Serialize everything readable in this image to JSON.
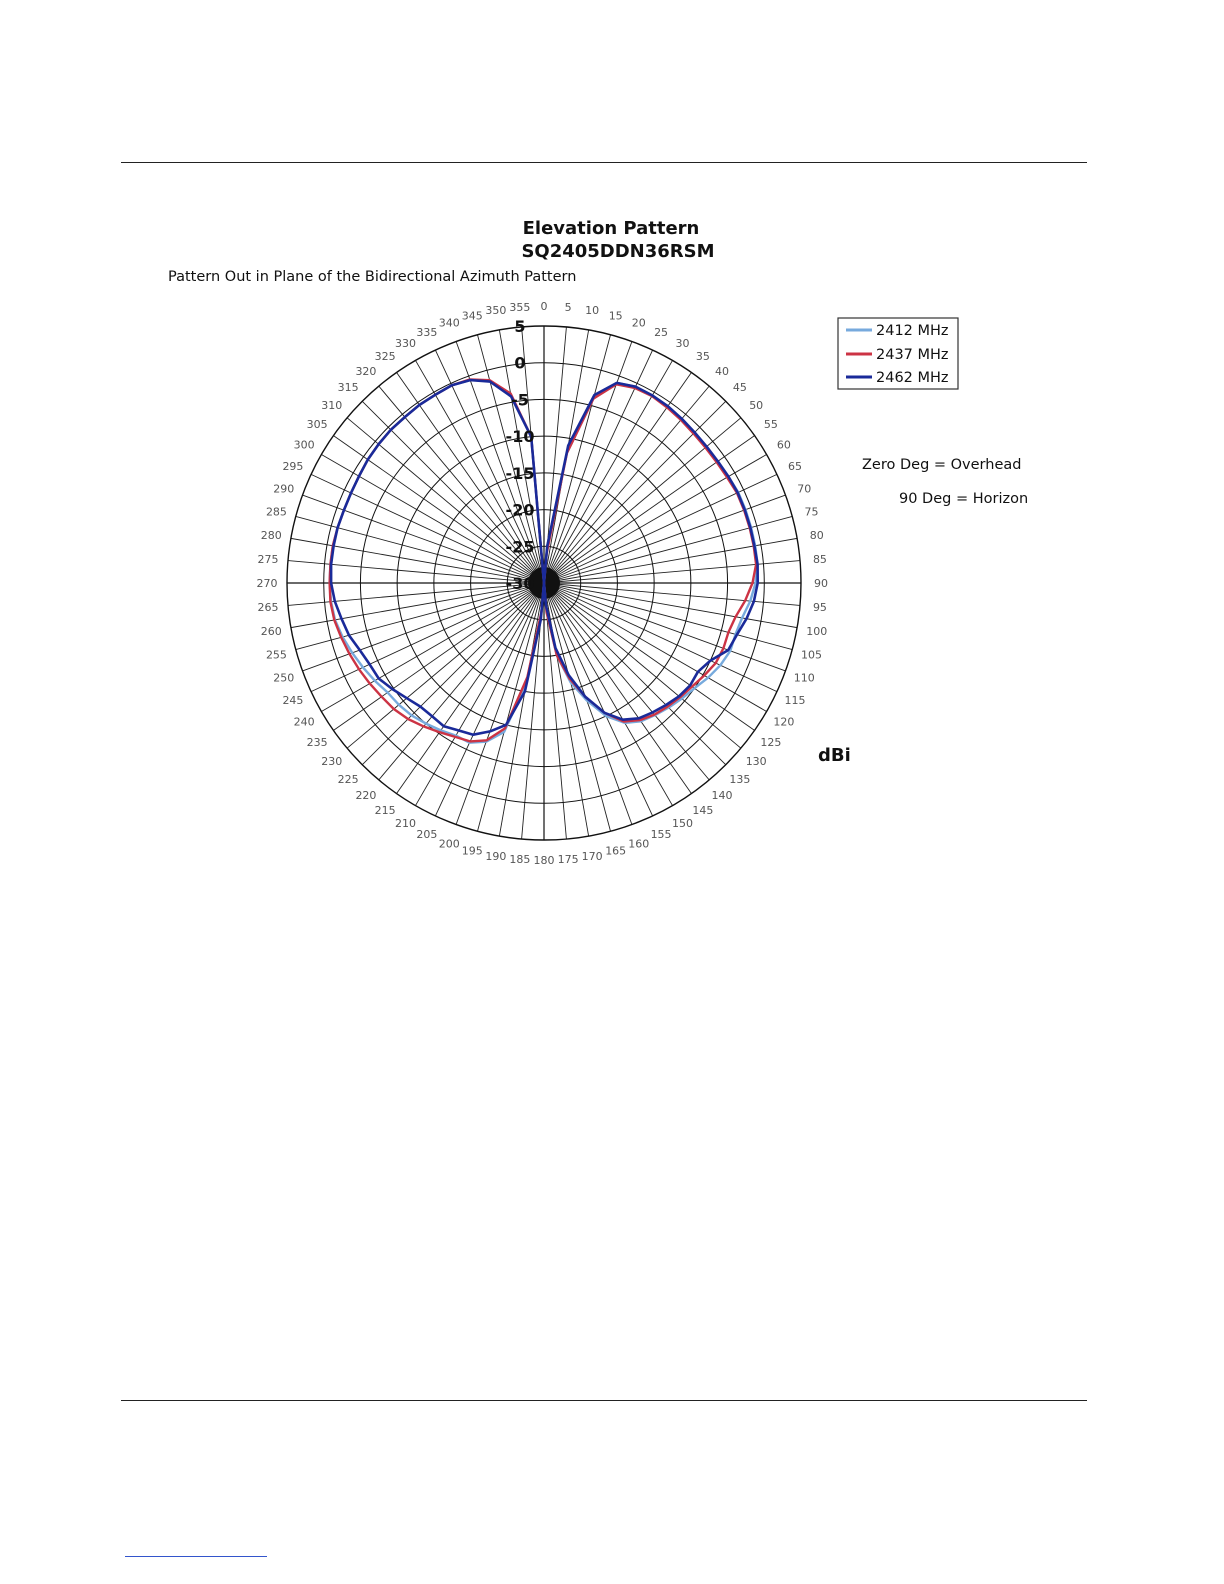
{
  "chart_data": {
    "type": "polar-line",
    "title": "Elevation Pattern",
    "subtitle": "SQ2405DDN36RSM",
    "caption": "Pattern Out in Plane of the Bidirectional Azimuth Pattern",
    "unit_label": "dBi",
    "notes": [
      "Zero Deg = Overhead",
      "90 Deg = Horizon"
    ],
    "angle_labels": [
      "0",
      "5",
      "10",
      "15",
      "20",
      "25",
      "30",
      "35",
      "40",
      "45",
      "50",
      "55",
      "60",
      "65",
      "70",
      "75",
      "80",
      "85",
      "90",
      "95",
      "100",
      "105",
      "110",
      "115",
      "120",
      "125",
      "130",
      "135",
      "140",
      "145",
      "150",
      "155",
      "160",
      "165",
      "170",
      "175",
      "180",
      "185",
      "190",
      "195",
      "200",
      "205",
      "210",
      "215",
      "220",
      "225",
      "230",
      "235",
      "240",
      "245",
      "250",
      "255",
      "260",
      "265",
      "270",
      "275",
      "280",
      "285",
      "290",
      "295",
      "300",
      "305",
      "310",
      "315",
      "320",
      "325",
      "330",
      "335",
      "340",
      "345",
      "350",
      "355"
    ],
    "radial_axis": {
      "range": [
        -30,
        5
      ],
      "tick_labels": [
        "5",
        "0",
        "-5",
        "-10",
        "-15",
        "-20",
        "-25",
        "-30"
      ],
      "tick_values": [
        5,
        0,
        -5,
        -10,
        -15,
        -20,
        -25,
        -30
      ]
    },
    "angle_direction": "clockwise",
    "zero_at": "top",
    "legend_position": "top-right",
    "series": [
      {
        "name": "2412 MHz",
        "color": "#77aadd",
        "points": [
          [
            0,
            -30
          ],
          [
            5,
            -25
          ],
          [
            10,
            -12
          ],
          [
            15,
            -4
          ],
          [
            20,
            -1
          ],
          [
            25,
            -0.5
          ],
          [
            30,
            -0.5
          ],
          [
            35,
            -0.6
          ],
          [
            40,
            -0.8
          ],
          [
            45,
            -1
          ],
          [
            50,
            -1.2
          ],
          [
            55,
            -1.2
          ],
          [
            60,
            -1
          ],
          [
            65,
            -0.8
          ],
          [
            70,
            -0.8
          ],
          [
            75,
            -0.8
          ],
          [
            80,
            -0.8
          ],
          [
            85,
            -0.8
          ],
          [
            90,
            -1.2
          ],
          [
            95,
            -1.8
          ],
          [
            100,
            -2.6
          ],
          [
            105,
            -3
          ],
          [
            110,
            -3
          ],
          [
            115,
            -3.5
          ],
          [
            120,
            -4.2
          ],
          [
            125,
            -5
          ],
          [
            130,
            -5.5
          ],
          [
            135,
            -6
          ],
          [
            140,
            -6.5
          ],
          [
            145,
            -7
          ],
          [
            150,
            -8
          ],
          [
            155,
            -10
          ],
          [
            160,
            -13
          ],
          [
            165,
            -16
          ],
          [
            170,
            -20
          ],
          [
            175,
            -26
          ],
          [
            180,
            -30
          ],
          [
            185,
            -26
          ],
          [
            190,
            -16
          ],
          [
            195,
            -9
          ],
          [
            200,
            -7
          ],
          [
            205,
            -6
          ],
          [
            210,
            -6
          ],
          [
            215,
            -5.5
          ],
          [
            220,
            -5
          ],
          [
            225,
            -4.5
          ],
          [
            230,
            -4.2
          ],
          [
            235,
            -4
          ],
          [
            240,
            -3.4
          ],
          [
            245,
            -2.8
          ],
          [
            250,
            -2.2
          ],
          [
            255,
            -1.6
          ],
          [
            260,
            -1.1
          ],
          [
            265,
            -0.9
          ],
          [
            270,
            -0.8
          ],
          [
            275,
            -0.8
          ],
          [
            280,
            -0.8
          ],
          [
            285,
            -0.9
          ],
          [
            290,
            -1
          ],
          [
            295,
            -1
          ],
          [
            300,
            -0.9
          ],
          [
            305,
            -0.7
          ],
          [
            310,
            -0.6
          ],
          [
            315,
            -0.5
          ],
          [
            320,
            -0.5
          ],
          [
            325,
            -0.4
          ],
          [
            330,
            -0.4
          ],
          [
            335,
            -0.3
          ],
          [
            340,
            -0.6
          ],
          [
            345,
            -1.5
          ],
          [
            350,
            -4
          ],
          [
            355,
            -10
          ]
        ]
      },
      {
        "name": "2437 MHz",
        "color": "#cc3344",
        "points": [
          [
            0,
            -30
          ],
          [
            5,
            -26
          ],
          [
            10,
            -12
          ],
          [
            15,
            -4
          ],
          [
            20,
            -1.2
          ],
          [
            25,
            -0.7
          ],
          [
            30,
            -0.6
          ],
          [
            35,
            -0.8
          ],
          [
            40,
            -1
          ],
          [
            45,
            -1.2
          ],
          [
            50,
            -1.3
          ],
          [
            55,
            -1.3
          ],
          [
            60,
            -1.2
          ],
          [
            65,
            -1
          ],
          [
            70,
            -1
          ],
          [
            75,
            -1
          ],
          [
            80,
            -1
          ],
          [
            85,
            -1
          ],
          [
            90,
            -1.6
          ],
          [
            95,
            -2.5
          ],
          [
            100,
            -3.5
          ],
          [
            105,
            -4
          ],
          [
            110,
            -4
          ],
          [
            115,
            -4.2
          ],
          [
            120,
            -4.8
          ],
          [
            125,
            -5.4
          ],
          [
            130,
            -5.8
          ],
          [
            135,
            -6.2
          ],
          [
            140,
            -6.6
          ],
          [
            145,
            -7.2
          ],
          [
            150,
            -8.2
          ],
          [
            155,
            -10.5
          ],
          [
            160,
            -13.5
          ],
          [
            165,
            -16.5
          ],
          [
            170,
            -20
          ],
          [
            175,
            -26
          ],
          [
            180,
            -30
          ],
          [
            185,
            -26
          ],
          [
            190,
            -17
          ],
          [
            195,
            -9.5
          ],
          [
            200,
            -7.2
          ],
          [
            205,
            -6.2
          ],
          [
            210,
            -5.8
          ],
          [
            215,
            -5.2
          ],
          [
            220,
            -4.5
          ],
          [
            225,
            -3.8
          ],
          [
            230,
            -3.3
          ],
          [
            235,
            -3
          ],
          [
            240,
            -2.6
          ],
          [
            245,
            -2.2
          ],
          [
            250,
            -1.8
          ],
          [
            255,
            -1.4
          ],
          [
            260,
            -1
          ],
          [
            265,
            -0.8
          ],
          [
            270,
            -0.8
          ],
          [
            275,
            -0.8
          ],
          [
            280,
            -0.8
          ],
          [
            285,
            -0.9
          ],
          [
            290,
            -1
          ],
          [
            295,
            -1
          ],
          [
            300,
            -0.9
          ],
          [
            305,
            -0.7
          ],
          [
            310,
            -0.6
          ],
          [
            315,
            -0.5
          ],
          [
            320,
            -0.5
          ],
          [
            325,
            -0.4
          ],
          [
            330,
            -0.4
          ],
          [
            335,
            -0.3
          ],
          [
            340,
            -0.5
          ],
          [
            345,
            -1.4
          ],
          [
            350,
            -3.8
          ],
          [
            355,
            -10
          ]
        ]
      },
      {
        "name": "2462 MHz",
        "color": "#1a2a99",
        "points": [
          [
            0,
            -30
          ],
          [
            5,
            -25
          ],
          [
            10,
            -11
          ],
          [
            15,
            -3.5
          ],
          [
            20,
            -1
          ],
          [
            25,
            -0.5
          ],
          [
            30,
            -0.5
          ],
          [
            35,
            -0.6
          ],
          [
            40,
            -0.8
          ],
          [
            45,
            -1
          ],
          [
            50,
            -1.1
          ],
          [
            55,
            -1.1
          ],
          [
            60,
            -1
          ],
          [
            65,
            -0.9
          ],
          [
            70,
            -0.9
          ],
          [
            75,
            -0.9
          ],
          [
            80,
            -0.9
          ],
          [
            85,
            -0.8
          ],
          [
            90,
            -0.9
          ],
          [
            95,
            -1.3
          ],
          [
            100,
            -2
          ],
          [
            105,
            -2.8
          ],
          [
            110,
            -3.3
          ],
          [
            115,
            -5
          ],
          [
            120,
            -5.8
          ],
          [
            125,
            -5.7
          ],
          [
            130,
            -6
          ],
          [
            135,
            -6.5
          ],
          [
            140,
            -7
          ],
          [
            145,
            -7.5
          ],
          [
            150,
            -8.5
          ],
          [
            155,
            -10.5
          ],
          [
            160,
            -13.5
          ],
          [
            165,
            -17
          ],
          [
            170,
            -21
          ],
          [
            175,
            -27
          ],
          [
            180,
            -30
          ],
          [
            185,
            -25
          ],
          [
            190,
            -15
          ],
          [
            195,
            -10
          ],
          [
            200,
            -8.5
          ],
          [
            205,
            -7.2
          ],
          [
            210,
            -6.8
          ],
          [
            215,
            -6.2
          ],
          [
            220,
            -6.3
          ],
          [
            225,
            -6.2
          ],
          [
            230,
            -5.6
          ],
          [
            235,
            -4.8
          ],
          [
            240,
            -4
          ],
          [
            245,
            -3.8
          ],
          [
            250,
            -3.3
          ],
          [
            255,
            -2.5
          ],
          [
            260,
            -2
          ],
          [
            265,
            -1.4
          ],
          [
            270,
            -1
          ],
          [
            275,
            -0.9
          ],
          [
            280,
            -0.9
          ],
          [
            285,
            -0.9
          ],
          [
            290,
            -1
          ],
          [
            295,
            -1
          ],
          [
            300,
            -0.9
          ],
          [
            305,
            -0.7
          ],
          [
            310,
            -0.6
          ],
          [
            315,
            -0.5
          ],
          [
            320,
            -0.5
          ],
          [
            325,
            -0.4
          ],
          [
            330,
            -0.4
          ],
          [
            335,
            -0.3
          ],
          [
            340,
            -0.6
          ],
          [
            345,
            -1.6
          ],
          [
            350,
            -4.2
          ],
          [
            355,
            -10
          ]
        ]
      }
    ]
  }
}
